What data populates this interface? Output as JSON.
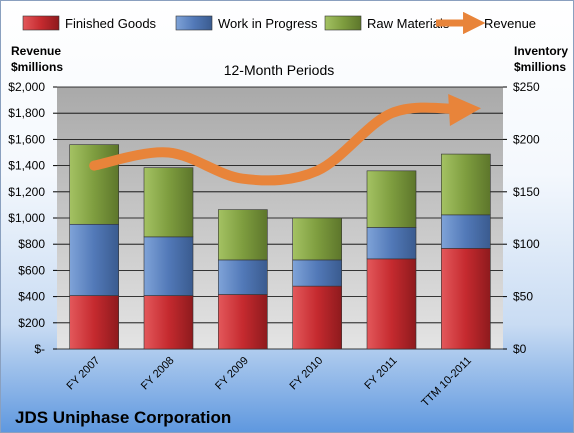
{
  "chart_data": {
    "type": "bar",
    "stacked": true,
    "title": "12-Month Periods",
    "company": "JDS Uniphase Corporation",
    "y_left_label": [
      "Revenue",
      "$millions"
    ],
    "y_right_label": [
      "Inventory",
      "$millions"
    ],
    "categories": [
      "FY 2007",
      "FY 2008",
      "FY 2009",
      "FY 2010",
      "FY 2011",
      "TTM 10-2011"
    ],
    "ylim_left": [
      0,
      2000
    ],
    "ylim_right": [
      0,
      250
    ],
    "y_left_ticks": [
      "$-",
      "$200",
      "$400",
      "$600",
      "$800",
      "$1,000",
      "$1,200",
      "$1,400",
      "$1,600",
      "$1,800",
      "$2,000"
    ],
    "y_right_ticks": [
      "$0",
      "$50",
      "$100",
      "$150",
      "$200",
      "$250"
    ],
    "legend_position": "top",
    "grid": true,
    "series": [
      {
        "name": "Finished Goods",
        "axis": "right",
        "color": "#c0282d",
        "values": [
          51,
          51,
          52,
          60,
          86,
          96
        ]
      },
      {
        "name": "Work in Progress",
        "axis": "right",
        "color": "#4f7bbd",
        "values": [
          68,
          56,
          33,
          25,
          30,
          32
        ]
      },
      {
        "name": "Raw Materials",
        "axis": "right",
        "color": "#7a9a3a",
        "values": [
          76,
          66,
          48,
          40,
          54,
          58
        ]
      },
      {
        "name": "Revenue",
        "axis": "left",
        "type": "line",
        "color": "#e8843a",
        "values": [
          1400,
          1500,
          1300,
          1360,
          1800,
          1830
        ]
      }
    ]
  }
}
